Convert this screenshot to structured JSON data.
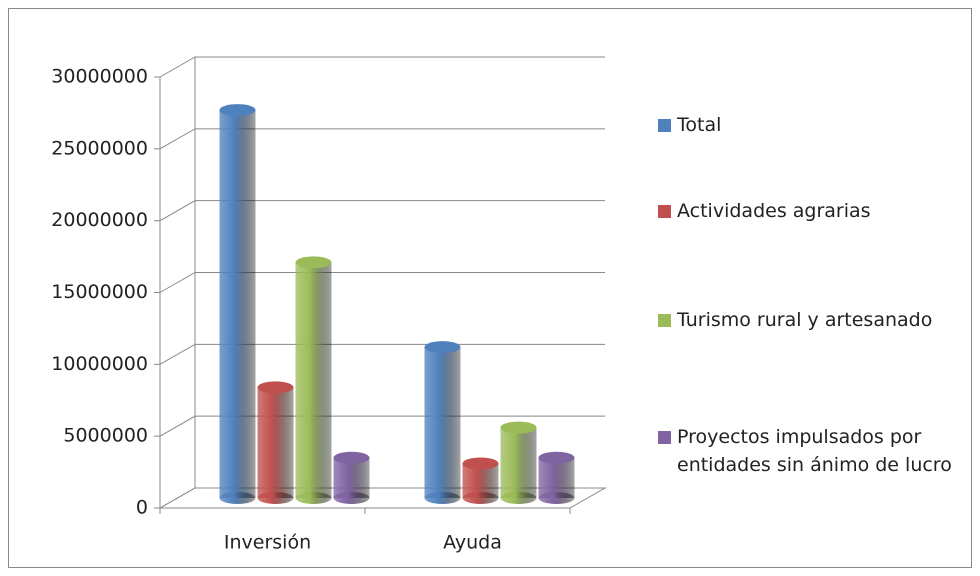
{
  "chart_data": {
    "type": "bar3d",
    "categories": [
      "Inversión",
      "Ayuda"
    ],
    "series": [
      {
        "name": "Total",
        "color": "#4f81bd",
        "values": [
          27000000,
          10500000
        ]
      },
      {
        "name": "Actividades agrarias",
        "color": "#c0504d",
        "values": [
          7700000,
          2400000
        ]
      },
      {
        "name": "Turismo rural y artesanado",
        "color": "#9bbb59",
        "values": [
          16400000,
          4900000
        ]
      },
      {
        "name": "Proyectos impulsados por entidades sin ánimo de lucro",
        "color": "#8064a2",
        "values": [
          2800000,
          2800000
        ]
      }
    ],
    "ylim": [
      0,
      30000000
    ],
    "yticks": [
      0,
      5000000,
      10000000,
      15000000,
      20000000,
      25000000,
      30000000
    ],
    "grid": true,
    "legend": "right"
  }
}
